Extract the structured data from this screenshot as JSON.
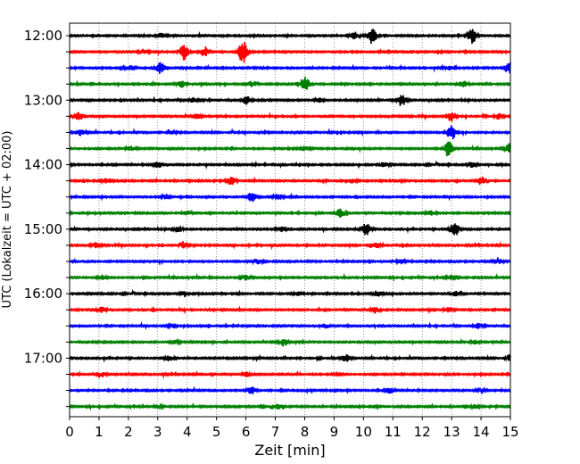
{
  "chart_data": {
    "type": "line",
    "xlabel": "Zeit  [min]",
    "ylabel": "UTC (Lokalzeit = UTC + 02:00)",
    "xlim": [
      0,
      15
    ],
    "x_ticks": [
      0,
      1,
      2,
      3,
      4,
      5,
      6,
      7,
      8,
      9,
      10,
      11,
      12,
      13,
      14,
      15
    ],
    "y_tick_labels": [
      "12:00",
      "13:00",
      "14:00",
      "15:00",
      "16:00",
      "17:00"
    ],
    "trace_interval_minutes": 15,
    "grid": "vertical dotted lines at each minute",
    "series_colors": [
      "#000000",
      "#ff0000",
      "#0000ff",
      "#008000"
    ],
    "traces": [
      {
        "start": "12:00",
        "bursts": [
          [
            10.3,
            1.0
          ],
          [
            13.7,
            0.9
          ],
          [
            9.7,
            0.4
          ],
          [
            3.1,
            0.3
          ]
        ]
      },
      {
        "start": "12:15",
        "bursts": [
          [
            5.9,
            1.6
          ],
          [
            3.9,
            1.0
          ],
          [
            4.6,
            0.6
          ],
          [
            2.5,
            0.3
          ]
        ]
      },
      {
        "start": "12:30",
        "bursts": [
          [
            3.1,
            0.7
          ],
          [
            15.0,
            0.9
          ],
          [
            2.0,
            0.3
          ],
          [
            13.0,
            0.3
          ]
        ]
      },
      {
        "start": "12:45",
        "bursts": [
          [
            8.0,
            1.0
          ],
          [
            3.8,
            0.4
          ],
          [
            13.4,
            0.3
          ],
          [
            6.2,
            0.3
          ]
        ]
      },
      {
        "start": "13:00",
        "bursts": [
          [
            6.0,
            0.6
          ],
          [
            11.3,
            0.7
          ],
          [
            4.2,
            0.3
          ],
          [
            8.5,
            0.3
          ]
        ]
      },
      {
        "start": "13:15",
        "bursts": [
          [
            0.3,
            0.6
          ],
          [
            13.0,
            0.6
          ],
          [
            4.3,
            0.3
          ],
          [
            14.6,
            0.3
          ]
        ]
      },
      {
        "start": "13:30",
        "bursts": [
          [
            13.0,
            0.9
          ],
          [
            0.4,
            0.4
          ],
          [
            3.5,
            0.2
          ]
        ]
      },
      {
        "start": "13:45",
        "bursts": [
          [
            12.9,
            0.9
          ],
          [
            15.0,
            0.8
          ],
          [
            2.1,
            0.3
          ],
          [
            8.0,
            0.3
          ]
        ]
      },
      {
        "start": "14:00",
        "bursts": [
          [
            3.0,
            0.4
          ],
          [
            10.7,
            0.3
          ],
          [
            13.7,
            0.3
          ]
        ]
      },
      {
        "start": "14:15",
        "bursts": [
          [
            5.5,
            0.5
          ],
          [
            14.0,
            0.5
          ],
          [
            1.4,
            0.3
          ],
          [
            9.6,
            0.3
          ]
        ]
      },
      {
        "start": "14:30",
        "bursts": [
          [
            6.2,
            0.6
          ],
          [
            7.1,
            0.4
          ],
          [
            3.3,
            0.3
          ]
        ]
      },
      {
        "start": "14:45",
        "bursts": [
          [
            9.2,
            0.5
          ],
          [
            12.3,
            0.3
          ],
          [
            4.0,
            0.3
          ]
        ]
      },
      {
        "start": "15:00",
        "bursts": [
          [
            13.1,
            1.0
          ],
          [
            10.1,
            0.8
          ],
          [
            3.7,
            0.4
          ],
          [
            7.2,
            0.3
          ]
        ]
      },
      {
        "start": "15:15",
        "bursts": [
          [
            3.9,
            0.3
          ],
          [
            10.4,
            0.3
          ],
          [
            0.9,
            0.3
          ]
        ]
      },
      {
        "start": "15:30",
        "bursts": [
          [
            6.4,
            0.3
          ],
          [
            11.3,
            0.3
          ],
          [
            14.6,
            0.3
          ]
        ]
      },
      {
        "start": "15:45",
        "bursts": [
          [
            1.1,
            0.3
          ],
          [
            6.0,
            0.3
          ],
          [
            13.0,
            0.3
          ]
        ]
      },
      {
        "start": "16:00",
        "bursts": [
          [
            3.9,
            0.3
          ],
          [
            10.5,
            0.4
          ],
          [
            13.1,
            0.3
          ],
          [
            7.8,
            0.3
          ]
        ]
      },
      {
        "start": "16:15",
        "bursts": [
          [
            1.1,
            0.3
          ],
          [
            10.4,
            0.4
          ],
          [
            12.9,
            0.3
          ]
        ]
      },
      {
        "start": "16:30",
        "bursts": [
          [
            8.7,
            0.3
          ],
          [
            13.9,
            0.3
          ],
          [
            3.5,
            0.2
          ]
        ]
      },
      {
        "start": "16:45",
        "bursts": [
          [
            7.3,
            0.4
          ],
          [
            3.6,
            0.2
          ],
          [
            13.8,
            0.2
          ]
        ]
      },
      {
        "start": "17:00",
        "bursts": [
          [
            9.4,
            0.4
          ],
          [
            3.4,
            0.3
          ],
          [
            15.0,
            0.3
          ]
        ]
      },
      {
        "start": "17:15",
        "bursts": [
          [
            6.0,
            0.3
          ],
          [
            9.1,
            0.3
          ],
          [
            1.1,
            0.2
          ]
        ]
      },
      {
        "start": "17:30",
        "bursts": [
          [
            6.2,
            0.5
          ],
          [
            10.9,
            0.3
          ],
          [
            14.0,
            0.2
          ]
        ]
      },
      {
        "start": "17:45",
        "bursts": [
          [
            7.1,
            0.3
          ],
          [
            13.8,
            0.2
          ],
          [
            3.0,
            0.2
          ]
        ]
      }
    ]
  }
}
